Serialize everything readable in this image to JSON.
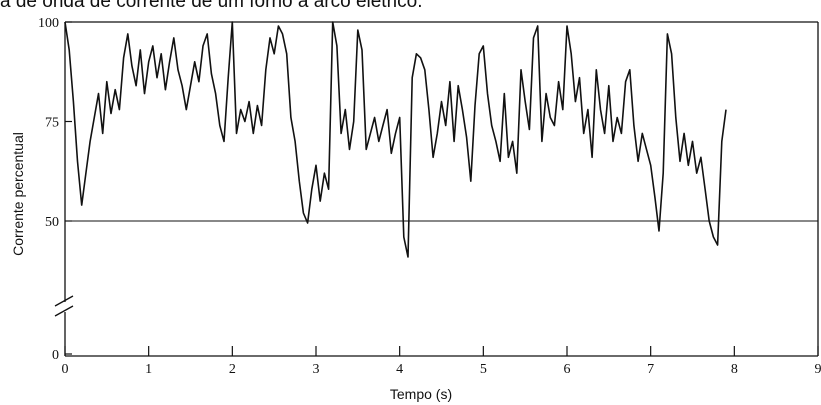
{
  "caption": "a de onda de corrente de um forno a arco elétrico.",
  "chart_data": {
    "type": "line",
    "title": "",
    "xlabel": "Tempo (s)",
    "ylabel": "Corrente percentual",
    "xlim": [
      0,
      9
    ],
    "xticks": [
      0,
      1,
      2,
      3,
      4,
      5,
      6,
      7,
      8,
      9
    ],
    "xtick_labels": [
      "0",
      "1",
      "2",
      "3",
      "4",
      "5",
      "6",
      "7",
      "8",
      "9"
    ],
    "ylim": [
      0,
      100
    ],
    "yticks": [
      0,
      50,
      75,
      100
    ],
    "ytick_labels": [
      "0",
      "50",
      "75",
      "100"
    ],
    "axis_break": true,
    "reference_line_y": 50,
    "grid": false,
    "legend": "none",
    "colors": {
      "line": "#111111",
      "axis": "#111111"
    },
    "series": [
      {
        "x": [
          0,
          0.05,
          0.1,
          0.15,
          0.2,
          0.25,
          0.3,
          0.35,
          0.4,
          0.45,
          0.5,
          0.55,
          0.6,
          0.65,
          0.7,
          0.75,
          0.8,
          0.85,
          0.9,
          0.95,
          1.0,
          1.05,
          1.1,
          1.15,
          1.2,
          1.25,
          1.3,
          1.35,
          1.4,
          1.45,
          1.5,
          1.55,
          1.6,
          1.65,
          1.7,
          1.75,
          1.8,
          1.85,
          1.9,
          1.95,
          2.0,
          2.05,
          2.1,
          2.15,
          2.2,
          2.25,
          2.3,
          2.35,
          2.4,
          2.45,
          2.5,
          2.55,
          2.6,
          2.65,
          2.7,
          2.75,
          2.8,
          2.85,
          2.9,
          2.95,
          3.0,
          3.05,
          3.1,
          3.15,
          3.2,
          3.25,
          3.3,
          3.35,
          3.4,
          3.45,
          3.5,
          3.55,
          3.6,
          3.65,
          3.7,
          3.75,
          3.8,
          3.85,
          3.9,
          3.95,
          4.0,
          4.05,
          4.1,
          4.15,
          4.2,
          4.25,
          4.3,
          4.35,
          4.4,
          4.45,
          4.5,
          4.55,
          4.6,
          4.65,
          4.7,
          4.75,
          4.8,
          4.85,
          4.9,
          4.95,
          5.0,
          5.05,
          5.1,
          5.15,
          5.2,
          5.25,
          5.3,
          5.35,
          5.4,
          5.45,
          5.5,
          5.55,
          5.6,
          5.65,
          5.7,
          5.75,
          5.8,
          5.85,
          5.9,
          5.95,
          6.0,
          6.05,
          6.1,
          6.15,
          6.2,
          6.25,
          6.3,
          6.35,
          6.4,
          6.45,
          6.5,
          6.55,
          6.6,
          6.65,
          6.7,
          6.75,
          6.8,
          6.85,
          6.9,
          6.95,
          7.0,
          7.05,
          7.1,
          7.15,
          7.2,
          7.25,
          7.3,
          7.35,
          7.4,
          7.45,
          7.5,
          7.55,
          7.6,
          7.65,
          7.7,
          7.75,
          7.8,
          7.85,
          7.9
        ],
        "y": [
          100,
          93,
          80,
          65,
          54,
          62,
          70,
          76,
          82,
          72,
          85,
          77,
          83,
          78,
          91,
          97,
          89,
          84,
          93,
          82,
          90,
          94,
          86,
          92,
          83,
          90,
          96,
          88,
          84,
          78,
          84,
          90,
          85,
          94,
          97,
          87,
          82,
          74,
          70,
          86,
          100,
          72,
          78,
          75,
          80,
          72,
          79,
          74,
          88,
          96,
          92,
          99,
          97,
          92,
          76,
          70,
          60,
          52,
          49,
          58,
          64,
          55,
          62,
          58,
          100,
          94,
          72,
          78,
          68,
          75,
          98,
          93,
          68,
          72,
          76,
          70,
          74,
          78,
          67,
          72,
          76,
          42,
          32,
          86,
          92,
          91,
          88,
          78,
          66,
          72,
          80,
          74,
          85,
          70,
          84,
          78,
          71,
          60,
          79,
          92,
          94,
          82,
          74,
          70,
          65,
          82,
          66,
          70,
          62,
          88,
          80,
          73,
          96,
          99,
          70,
          82,
          76,
          74,
          85,
          78,
          99,
          92,
          80,
          86,
          72,
          78,
          66,
          88,
          78,
          72,
          84,
          70,
          76,
          72,
          85,
          88,
          74,
          65,
          72,
          68,
          64,
          56,
          45,
          62,
          97,
          92,
          76,
          65,
          72,
          64,
          70,
          62,
          66,
          58,
          50,
          42,
          38,
          70,
          78
        ]
      }
    ]
  }
}
